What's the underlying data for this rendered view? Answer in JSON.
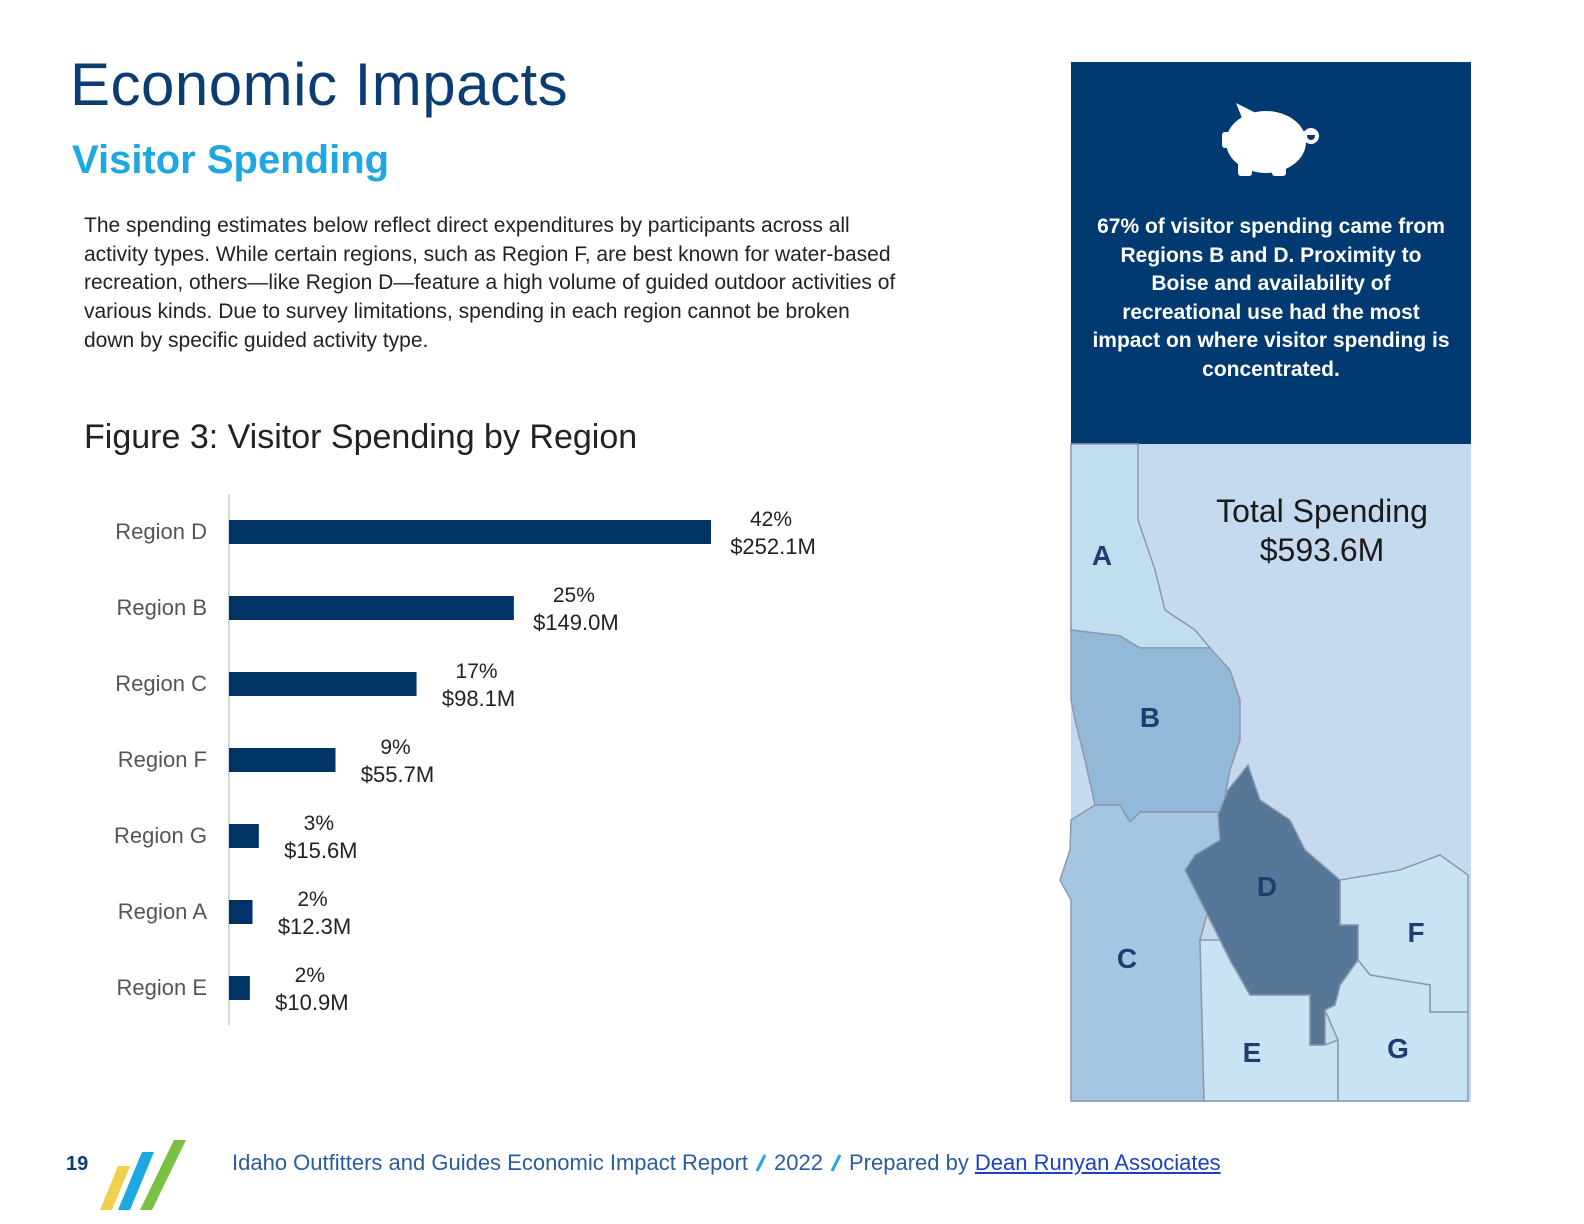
{
  "header": {
    "title": "Economic Impacts",
    "subtitle": "Visitor Spending"
  },
  "body": {
    "paragraph": "The spending estimates below reflect direct expenditures by participants across all activity types. While certain regions, such as Region F, are best known for water-based recreation, others—like Region D—feature a high volume of guided outdoor activities of various kinds. Due to survey limitations, spending in each region cannot be broken down by specific guided activity type."
  },
  "chart_data": {
    "type": "bar",
    "title": "Figure 3: Visitor Spending by Region",
    "categories": [
      "Region D",
      "Region B",
      "Region C",
      "Region F",
      "Region G",
      "Region A",
      "Region E"
    ],
    "values": [
      252.1,
      149.0,
      98.1,
      55.7,
      15.6,
      12.3,
      10.9
    ],
    "value_labels": [
      "$252.1M",
      "$149.0M",
      "$98.1M",
      "$55.7M",
      "$15.6M",
      "$12.3M",
      "$10.9M"
    ],
    "shares": [
      42,
      25,
      17,
      9,
      3,
      2,
      2
    ],
    "share_labels": [
      "42%",
      "25%",
      "17%",
      "9%",
      "3%",
      "2%",
      "2%"
    ],
    "color": "#003366"
  },
  "sidebar": {
    "callout": "67% of visitor spending came from Regions B and D. Proximity to Boise and availability of recreational use had the most impact on where visitor spending is concentrated."
  },
  "map": {
    "total_label": "Total Spending",
    "total_value": "$593.6M",
    "regions": [
      "A",
      "B",
      "C",
      "D",
      "E",
      "F",
      "G"
    ]
  },
  "footer": {
    "page_number": "19",
    "report": "Idaho Outfitters and Guides Economic Impact Report",
    "year": "2022",
    "prepared_by": "Prepared by",
    "author": "Dean Runyan Associates"
  }
}
